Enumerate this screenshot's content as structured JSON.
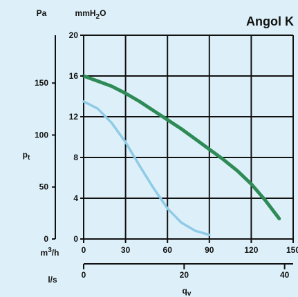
{
  "chart_data": {
    "type": "line",
    "title": "Angol K",
    "pressure_units": {
      "pa": "Pa",
      "mmh2o_base": "mmH",
      "mmh2o_sub": "2",
      "mmh2o_tail": "O"
    },
    "flow_units": {
      "m3h_base": "m",
      "m3h_sup": "3",
      "m3h_tail": "/h",
      "ls": "l/s"
    },
    "x_label": "q",
    "x_label_sub": "v",
    "y_label": "p",
    "y_label_sub": "t",
    "x_ticks_m3h": [
      "0",
      "30",
      "60",
      "90",
      "120",
      "150"
    ],
    "x_ticks_ls": [
      "0",
      "20",
      "40"
    ],
    "y_ticks_mmh2o": [
      "0",
      "4",
      "8",
      "12",
      "16",
      "20"
    ],
    "y_ticks_pa": [
      "0",
      "50",
      "100",
      "150"
    ],
    "xlim_m3h": [
      0,
      150
    ],
    "ylim_mmh2o": [
      0,
      20
    ],
    "pa_range": [
      0,
      196
    ],
    "ls_range": [
      0,
      41.7
    ],
    "grid": true,
    "series": [
      {
        "color": "#2e8b57",
        "x": [
          0,
          10,
          20,
          30,
          40,
          50,
          60,
          70,
          80,
          90,
          100,
          110,
          120,
          130,
          140
        ],
        "y": [
          16.0,
          15.5,
          15.0,
          14.3,
          13.5,
          12.6,
          11.7,
          10.8,
          9.8,
          8.8,
          7.8,
          6.7,
          5.4,
          3.8,
          2.0
        ]
      },
      {
        "color": "#8fcbe6",
        "x": [
          0,
          10,
          20,
          30,
          40,
          50,
          60,
          70,
          80,
          90
        ],
        "y": [
          13.5,
          12.8,
          11.4,
          9.5,
          7.2,
          5.0,
          3.0,
          1.6,
          0.8,
          0.4
        ]
      }
    ]
  }
}
